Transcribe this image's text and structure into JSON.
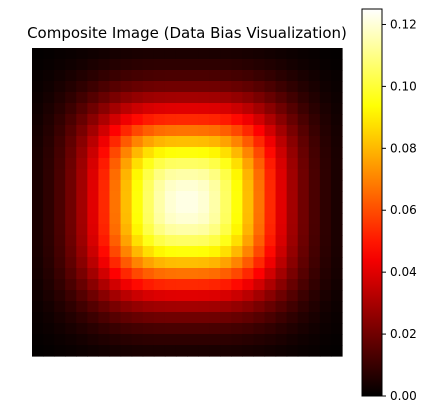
{
  "chart_data": {
    "type": "heatmap",
    "title": "Composite Image (Data Bias Visualization)",
    "colormap": "hot",
    "axes_visible": false,
    "grid": false,
    "grid_size": [
      28,
      28
    ],
    "vmin": 0.0,
    "vmax": 0.125,
    "colorbar": {
      "placement": "right",
      "ticks": [
        0.0,
        0.02,
        0.04,
        0.06,
        0.08,
        0.1,
        0.12
      ],
      "tick_labels": [
        "0.00",
        "0.02",
        "0.04",
        "0.06",
        "0.08",
        "0.10",
        "0.12"
      ]
    },
    "value_model": {
      "description_free": true,
      "center_value": 0.122,
      "edge_value": 0.0,
      "center": [
        13.5,
        13.5
      ],
      "half_width": 8.3,
      "shape_power": 3.2,
      "falloff": 2.3
    }
  }
}
